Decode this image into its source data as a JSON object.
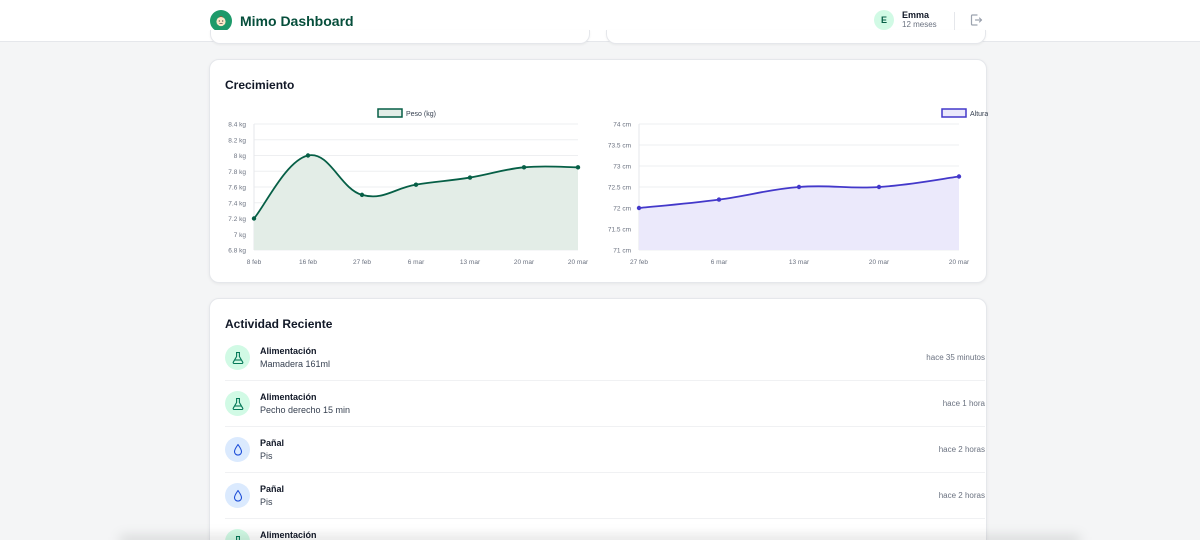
{
  "app": {
    "title": "Mimo Dashboard"
  },
  "user": {
    "initial": "E",
    "name": "Emma",
    "age": "12 meses"
  },
  "growth": {
    "title": "Crecimiento"
  },
  "chart_data": [
    {
      "type": "area",
      "title": "",
      "legend": "Peso (kg)",
      "color": "#065f46",
      "fill": "#e3ede7",
      "categories": [
        "8 feb",
        "16 feb",
        "27 feb",
        "6 mar",
        "13 mar",
        "20 mar",
        "20 mar"
      ],
      "values": [
        7.2,
        8.0,
        7.5,
        7.63,
        7.72,
        7.85,
        7.85
      ],
      "ylim": [
        6.8,
        8.4
      ],
      "yticks": [
        "8.4 kg",
        "8.2 kg",
        "8 kg",
        "7.8 kg",
        "7.6 kg",
        "7.4 kg",
        "7.2 kg",
        "7 kg",
        "6.8 kg"
      ]
    },
    {
      "type": "area",
      "title": "",
      "legend": "Altura (cm)",
      "color": "#4338ca",
      "fill": "#ebe9fb",
      "categories": [
        "27 feb",
        "6 mar",
        "13 mar",
        "20 mar",
        "20 mar"
      ],
      "values": [
        72.0,
        72.2,
        72.5,
        72.5,
        72.75
      ],
      "ylim": [
        71,
        74
      ],
      "yticks": [
        "74 cm",
        "73.5 cm",
        "73 cm",
        "72.5 cm",
        "72 cm",
        "71.5 cm",
        "71 cm"
      ]
    }
  ],
  "activity": {
    "title": "Actividad Reciente",
    "items": [
      {
        "kind": "feed",
        "icon": "flask-icon",
        "type": "Alimentación",
        "detail": "Mamadera 161ml",
        "time": "hace 35 minutos"
      },
      {
        "kind": "feed",
        "icon": "flask-icon",
        "type": "Alimentación",
        "detail": "Pecho derecho 15 min",
        "time": "hace 1 hora"
      },
      {
        "kind": "diaper",
        "icon": "droplet-icon",
        "type": "Pañal",
        "detail": "Pis",
        "time": "hace 2 horas"
      },
      {
        "kind": "diaper",
        "icon": "droplet-icon",
        "type": "Pañal",
        "detail": "Pis",
        "time": "hace 2 horas"
      },
      {
        "kind": "feed",
        "icon": "flask-icon",
        "type": "Alimentación",
        "detail": "",
        "time": ""
      }
    ]
  },
  "colors": {
    "brand": "#064e3b",
    "accent": "#1e9a6a"
  }
}
